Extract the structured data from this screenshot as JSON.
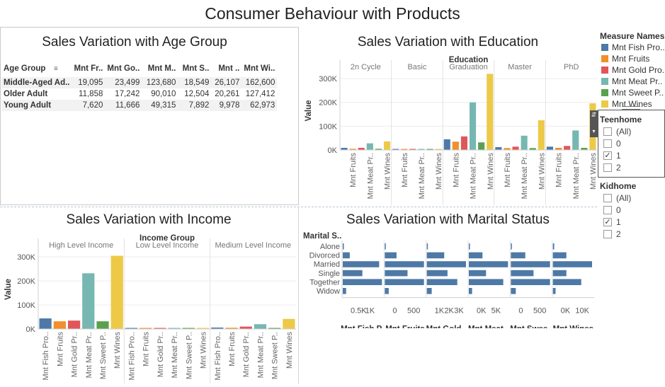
{
  "dashboard": {
    "title": "Consumer Behaviour with Products"
  },
  "colors": {
    "Mnt Fish Pro..": "#4e79a7",
    "Mnt Fruits": "#f28e2b",
    "Mnt Gold Pro..": "#e15759",
    "Mnt Meat P..": "#76b7b2",
    "Mnt Sweet P..": "#59a14f",
    "Mnt Wines": "#edc948"
  },
  "age_panel": {
    "title": "Sales Variation with Age Group",
    "columns": [
      "Age Group",
      "Mnt Fr..",
      "Mnt Go..",
      "Mnt M..",
      "Mnt S..",
      "Mnt ..",
      "Mnt Wi.."
    ],
    "rows": [
      [
        "Middle-Aged Ad..",
        "19,095",
        "23,499",
        "123,680",
        "18,549",
        "26,107",
        "162,600"
      ],
      [
        "Older Adult",
        "11,858",
        "17,242",
        "90,010",
        "12,504",
        "20,261",
        "127,412"
      ],
      [
        "Young Adult",
        "7,620",
        "11,666",
        "49,315",
        "7,892",
        "9,978",
        "62,973"
      ]
    ]
  },
  "chart_data": [
    {
      "type": "bar",
      "title": "Sales Variation with Education",
      "group_field": "Education",
      "ylabel": "Value",
      "ylim": [
        0,
        330000
      ],
      "yticks": [
        "0K",
        "100K",
        "200K",
        "300K"
      ],
      "groups": [
        "2n Cycle",
        "Basic",
        "Graduation",
        "Master",
        "PhD"
      ],
      "x_tick_labels": [
        "Mnt Fruits",
        "Mnt Meat Pr..",
        "Mnt Wines"
      ],
      "series_names": [
        "Mnt Fish Pro..",
        "Mnt Fruits",
        "Mnt Gold Pro..",
        "Mnt Meat P..",
        "Mnt Sweet P..",
        "Mnt Wines"
      ],
      "values": [
        [
          9000,
          5000,
          9000,
          28000,
          5000,
          36000
        ],
        [
          900,
          500,
          3000,
          600,
          500,
          400
        ],
        [
          45000,
          35000,
          57000,
          200000,
          32000,
          320000
        ],
        [
          12000,
          8000,
          14000,
          60000,
          8000,
          125000
        ],
        [
          14000,
          9000,
          17000,
          82000,
          9000,
          196000
        ]
      ]
    },
    {
      "type": "bar",
      "title": "Sales Variation with Income",
      "group_field": "Income Group",
      "ylabel": "Value",
      "ylim": [
        0,
        330000
      ],
      "yticks": [
        "0K",
        "100K",
        "200K",
        "300K"
      ],
      "groups": [
        "High Level Income",
        "Low Level Income",
        "Medium Level Income"
      ],
      "x_tick_labels": [
        "Mnt Fish Pro..",
        "Mnt Fruits",
        "Mnt Gold Pr..",
        "Mnt Meat Pr..",
        "Mnt Sweet P..",
        "Mnt Wines"
      ],
      "series_names": [
        "Mnt Fish Pro..",
        "Mnt Fruits",
        "Mnt Gold Pro..",
        "Mnt Meat P..",
        "Mnt Sweet P..",
        "Mnt Wines"
      ],
      "values": [
        [
          44000,
          32000,
          35000,
          232000,
          32000,
          305000
        ],
        [
          2000,
          1500,
          3500,
          3000,
          1500,
          3000
        ],
        [
          6000,
          5000,
          10000,
          20000,
          4000,
          42000
        ]
      ]
    },
    {
      "type": "bar",
      "orientation": "horizontal",
      "title": "Sales Variation with Marital Status",
      "row_field": "Marital S..",
      "categories": [
        "Alone",
        "Divorced",
        "Married",
        "Single",
        "Together",
        "Widow"
      ],
      "panels": [
        {
          "name": "Mnt Fish P..",
          "ticks": [
            "0.5K",
            "1K"
          ],
          "xlim": [
            0,
            1400
          ],
          "values": [
            5,
            250,
            1300,
            700,
            1400,
            120
          ]
        },
        {
          "name": "Mnt Fruits",
          "ticks": [
            "0",
            "500"
          ],
          "xlim": [
            0,
            1000
          ],
          "values": [
            5,
            300,
            1000,
            580,
            1000,
            100
          ]
        },
        {
          "name": "Mnt Gold ..",
          "ticks": [
            "1K",
            "2K",
            "3K"
          ],
          "xlim": [
            0,
            3600
          ],
          "values": [
            30,
            1600,
            3600,
            1900,
            2800,
            450
          ]
        },
        {
          "name": "Mnt Meat ..",
          "ticks": [
            "0K",
            "5K"
          ],
          "xlim": [
            0,
            6600
          ],
          "values": [
            10,
            2300,
            6600,
            2900,
            5800,
            550
          ]
        },
        {
          "name": "Mnt Swee..",
          "ticks": [
            "0",
            "500"
          ],
          "xlim": [
            0,
            950
          ],
          "values": [
            5,
            350,
            950,
            550,
            950,
            120
          ]
        },
        {
          "name": "Mnt Wines",
          "ticks": [
            "0K",
            "10K"
          ],
          "xlim": [
            0,
            14500
          ],
          "values": [
            500,
            5000,
            14500,
            5000,
            10500,
            1000
          ]
        }
      ]
    }
  ],
  "legend": {
    "title": "Measure Names",
    "items": [
      "Mnt Fish Pro..",
      "Mnt Fruits",
      "Mnt Gold Pro..",
      "Mnt Meat Pr..",
      "Mnt Sweet P..",
      "Mnt Wines"
    ]
  },
  "filters": {
    "teenhome": {
      "title": "Teenhome",
      "options": [
        "(All)",
        "0",
        "1",
        "2"
      ],
      "checked": "1"
    },
    "kidhome": {
      "title": "Kidhome",
      "options": [
        "(All)",
        "0",
        "1",
        "2"
      ],
      "checked": "1"
    }
  }
}
